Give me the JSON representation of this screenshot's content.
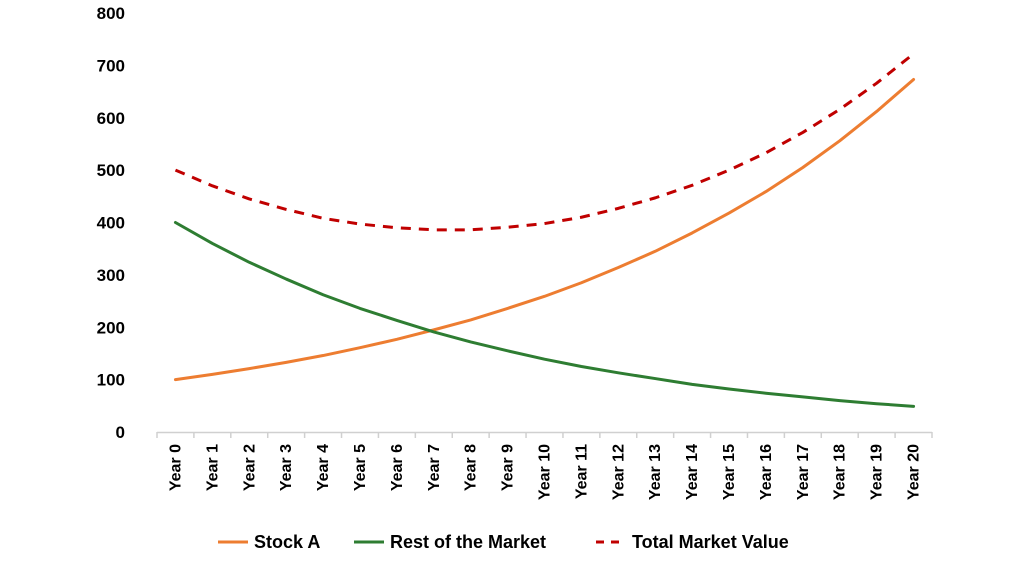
{
  "chart_data": {
    "type": "line",
    "title": "",
    "xlabel": "",
    "ylabel": "",
    "ylim": [
      0,
      800
    ],
    "yticks": [
      "0",
      "100",
      "200",
      "300",
      "400",
      "500",
      "600",
      "700",
      "800"
    ],
    "grid": false,
    "legend_position": "bottom",
    "x": [
      "Year 0",
      "Year 1",
      "Year 2",
      "Year 3",
      "Year 4",
      "Year 5",
      "Year 6",
      "Year 7",
      "Year 8",
      "Year 9",
      "Year 10",
      "Year 11",
      "Year 12",
      "Year 13",
      "Year 14",
      "Year 15",
      "Year 16",
      "Year 17",
      "Year 18",
      "Year 19",
      "Year 20"
    ],
    "series": [
      {
        "name": "Stock A",
        "color": "#ed7d31",
        "style": "solid",
        "values": [
          100,
          110,
          121,
          133,
          146,
          161,
          177,
          195,
          214,
          236,
          259,
          285,
          314,
          345,
          380,
          418,
          459,
          505,
          556,
          612,
          673
        ]
      },
      {
        "name": "Rest of the Market",
        "color": "#2e7d32",
        "style": "solid",
        "values": [
          400,
          360,
          324,
          292,
          262,
          236,
          213,
          191,
          172,
          155,
          139,
          125,
          113,
          102,
          91,
          82,
          74,
          67,
          60,
          54,
          49
        ]
      },
      {
        "name": "Total Market Value",
        "color": "#c00000",
        "style": "dashed",
        "values": [
          500,
          470,
          445,
          425,
          408,
          397,
          390,
          386,
          386,
          391,
          398,
          410,
          427,
          447,
          471,
          500,
          533,
          572,
          616,
          666,
          722
        ]
      }
    ]
  }
}
